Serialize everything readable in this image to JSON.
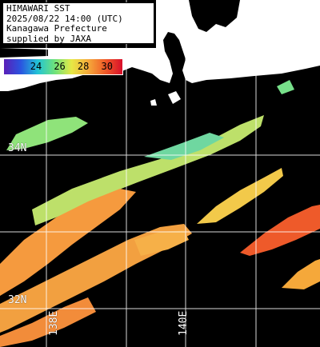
{
  "title": {
    "line1": "HIMAWARI SST",
    "line2": "2025/08/22 14:00 (UTC)",
    "line3": "Kanagawa Prefecture",
    "line4": "supplied by JAXA"
  },
  "colorbar": {
    "ticks": [
      "24",
      "26",
      "28",
      "30"
    ],
    "colors": [
      "#5a1fb8",
      "#2a55e0",
      "#22c4d6",
      "#6fe27a",
      "#e7e845",
      "#f5a83a",
      "#f05a28",
      "#d80e2a"
    ]
  },
  "graticule": {
    "lat_labels": [
      "34N",
      "32N"
    ],
    "lon_labels": [
      "138E",
      "140E"
    ],
    "line_color": "#ffffff"
  },
  "colors": {
    "background": "#000000",
    "land": "#ffffff",
    "sst_warm": "#f59a3e",
    "sst_mid": "#f2c94a",
    "sst_cool": "#8fe37a",
    "sst_hot": "#ee5a2a"
  }
}
